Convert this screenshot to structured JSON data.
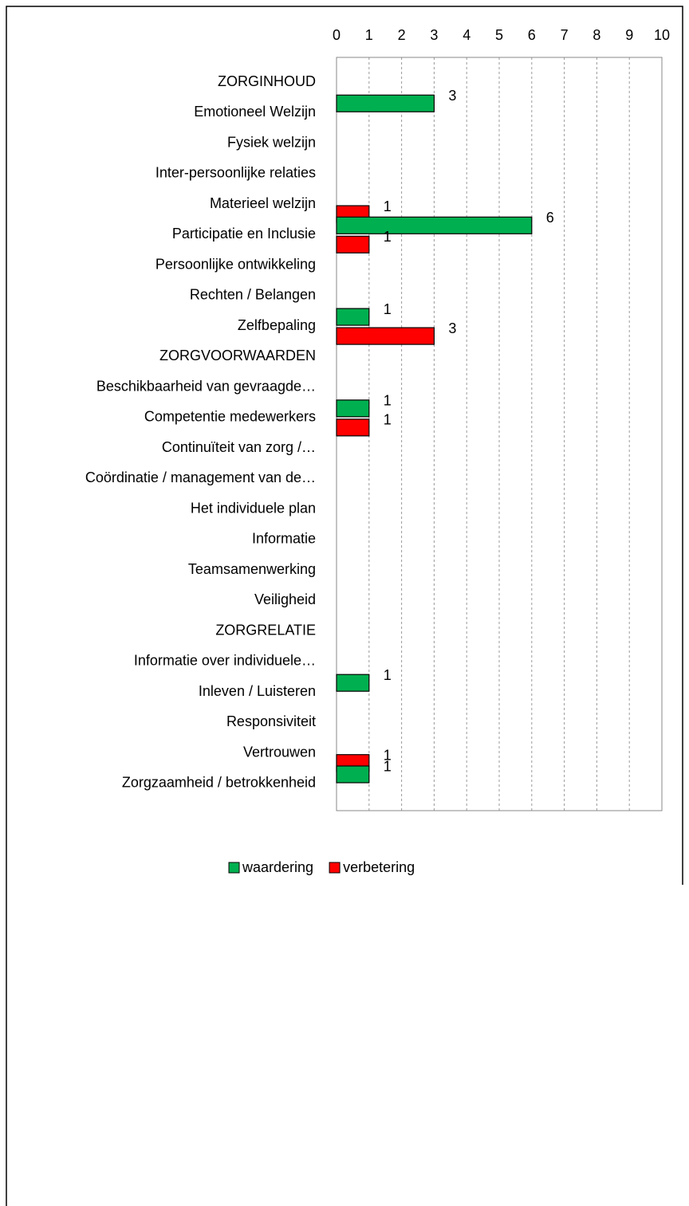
{
  "chart_data": {
    "type": "bar",
    "orientation": "horizontal",
    "categories": [
      "ZORGINHOUD",
      "Emotioneel Welzijn",
      "Fysiek welzijn",
      "Inter-persoonlijke relaties",
      "Materieel welzijn",
      "Participatie en Inclusie",
      "Persoonlijke ontwikkeling",
      "Rechten / Belangen",
      "Zelfbepaling",
      "ZORGVOORWAARDEN",
      "Beschikbaarheid van gevraagde…",
      "Competentie medewerkers",
      "Continuïteit van zorg /…",
      "Coördinatie / management van de…",
      "Het individuele plan",
      "Informatie",
      "Teamsamenwerking",
      "Veiligheid",
      "ZORGRELATIE",
      "Informatie over individuele…",
      "Inleven / Luisteren",
      "Responsiviteit",
      "Vertrouwen",
      "Zorgzaamheid / betrokkenheid"
    ],
    "series": [
      {
        "name": "waardering",
        "color": "#00b050",
        "values": [
          null,
          3,
          null,
          null,
          null,
          6,
          null,
          null,
          1,
          null,
          null,
          1,
          null,
          null,
          null,
          null,
          null,
          null,
          null,
          null,
          1,
          null,
          null,
          1
        ]
      },
      {
        "name": "verbetering",
        "color": "#ff0000",
        "values": [
          null,
          null,
          null,
          null,
          1,
          1,
          null,
          null,
          3,
          null,
          null,
          1,
          null,
          null,
          null,
          null,
          null,
          null,
          null,
          null,
          null,
          null,
          1,
          null
        ]
      }
    ],
    "xlim": [
      0,
      10
    ],
    "xticks": [
      0,
      1,
      2,
      3,
      4,
      5,
      6,
      7,
      8,
      9,
      10
    ],
    "grid": true,
    "legend": "bottom"
  }
}
